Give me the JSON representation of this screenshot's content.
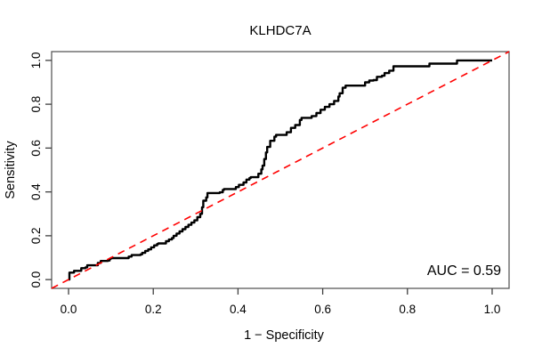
{
  "title": "KLHDC7A",
  "annotation": {
    "auc_label": "AUC = 0.59"
  },
  "colors": {
    "curve": "#000000",
    "diagonal": "#ff0000",
    "box": "#5a5a5a",
    "tick": "#404040",
    "text": "#000000",
    "background": "#ffffff"
  },
  "chart_data": {
    "type": "line",
    "subtype": "roc-curve",
    "title": "KLHDC7A",
    "xlabel": "1 − Specificity",
    "ylabel": "Sensitivity",
    "xlim": [
      -0.04,
      1.04
    ],
    "ylim": [
      -0.04,
      1.04
    ],
    "grid": false,
    "legend": "none",
    "x_ticks": [
      0.0,
      0.2,
      0.4,
      0.6,
      0.8,
      1.0
    ],
    "y_ticks": [
      0.0,
      0.2,
      0.4,
      0.6,
      0.8,
      1.0
    ],
    "x_tick_labels": [
      "0.0",
      "0.2",
      "0.4",
      "0.6",
      "0.8",
      "1.0"
    ],
    "y_tick_labels": [
      "0.0",
      "0.2",
      "0.4",
      "0.6",
      "0.8",
      "1.0"
    ],
    "annotations": [
      {
        "text": "AUC = 0.59",
        "x": 1.0,
        "y": 0.06,
        "anchor": "end"
      }
    ],
    "series": [
      {
        "name": "roc-curve",
        "style": "step",
        "color": "#000000",
        "width": 2.4,
        "points": [
          [
            0.0,
            0.0
          ],
          [
            0.002,
            0.012
          ],
          [
            0.002,
            0.032
          ],
          [
            0.013,
            0.04
          ],
          [
            0.027,
            0.04
          ],
          [
            0.03,
            0.052
          ],
          [
            0.04,
            0.056
          ],
          [
            0.044,
            0.065
          ],
          [
            0.065,
            0.065
          ],
          [
            0.069,
            0.076
          ],
          [
            0.076,
            0.085
          ],
          [
            0.093,
            0.087
          ],
          [
            0.097,
            0.095
          ],
          [
            0.1,
            0.098
          ],
          [
            0.139,
            0.098
          ],
          [
            0.142,
            0.105
          ],
          [
            0.149,
            0.112
          ],
          [
            0.17,
            0.115
          ],
          [
            0.174,
            0.122
          ],
          [
            0.181,
            0.131
          ],
          [
            0.188,
            0.138
          ],
          [
            0.195,
            0.147
          ],
          [
            0.202,
            0.156
          ],
          [
            0.209,
            0.162
          ],
          [
            0.212,
            0.165
          ],
          [
            0.226,
            0.165
          ],
          [
            0.23,
            0.175
          ],
          [
            0.237,
            0.183
          ],
          [
            0.244,
            0.19
          ],
          [
            0.248,
            0.2
          ],
          [
            0.255,
            0.21
          ],
          [
            0.262,
            0.22
          ],
          [
            0.269,
            0.23
          ],
          [
            0.276,
            0.24
          ],
          [
            0.283,
            0.25
          ],
          [
            0.29,
            0.26
          ],
          [
            0.297,
            0.27
          ],
          [
            0.304,
            0.285
          ],
          [
            0.311,
            0.3
          ],
          [
            0.315,
            0.33
          ],
          [
            0.318,
            0.36
          ],
          [
            0.325,
            0.375
          ],
          [
            0.328,
            0.395
          ],
          [
            0.357,
            0.398
          ],
          [
            0.364,
            0.409
          ],
          [
            0.367,
            0.413
          ],
          [
            0.388,
            0.413
          ],
          [
            0.395,
            0.422
          ],
          [
            0.402,
            0.432
          ],
          [
            0.413,
            0.443
          ],
          [
            0.42,
            0.456
          ],
          [
            0.427,
            0.463
          ],
          [
            0.43,
            0.467
          ],
          [
            0.444,
            0.467
          ],
          [
            0.448,
            0.483
          ],
          [
            0.455,
            0.503
          ],
          [
            0.458,
            0.52
          ],
          [
            0.462,
            0.55
          ],
          [
            0.466,
            0.58
          ],
          [
            0.469,
            0.605
          ],
          [
            0.476,
            0.633
          ],
          [
            0.486,
            0.652
          ],
          [
            0.49,
            0.66
          ],
          [
            0.51,
            0.66
          ],
          [
            0.515,
            0.672
          ],
          [
            0.525,
            0.692
          ],
          [
            0.535,
            0.705
          ],
          [
            0.546,
            0.728
          ],
          [
            0.55,
            0.738
          ],
          [
            0.567,
            0.738
          ],
          [
            0.574,
            0.746
          ],
          [
            0.585,
            0.76
          ],
          [
            0.595,
            0.775
          ],
          [
            0.605,
            0.788
          ],
          [
            0.616,
            0.8
          ],
          [
            0.627,
            0.815
          ],
          [
            0.637,
            0.835
          ],
          [
            0.64,
            0.85
          ],
          [
            0.647,
            0.875
          ],
          [
            0.654,
            0.885
          ],
          [
            0.694,
            0.885
          ],
          [
            0.7,
            0.9
          ],
          [
            0.71,
            0.908
          ],
          [
            0.72,
            0.91
          ],
          [
            0.728,
            0.925
          ],
          [
            0.74,
            0.93
          ],
          [
            0.746,
            0.942
          ],
          [
            0.757,
            0.953
          ],
          [
            0.767,
            0.973
          ],
          [
            0.847,
            0.973
          ],
          [
            0.852,
            0.985
          ],
          [
            0.915,
            0.985
          ],
          [
            0.917,
            1.0
          ],
          [
            1.0,
            1.0
          ]
        ]
      },
      {
        "name": "chance-diagonal",
        "style": "dashed",
        "color": "#ff0000",
        "width": 1.6,
        "points": [
          [
            -0.04,
            -0.04
          ],
          [
            1.04,
            1.04
          ]
        ]
      }
    ]
  }
}
